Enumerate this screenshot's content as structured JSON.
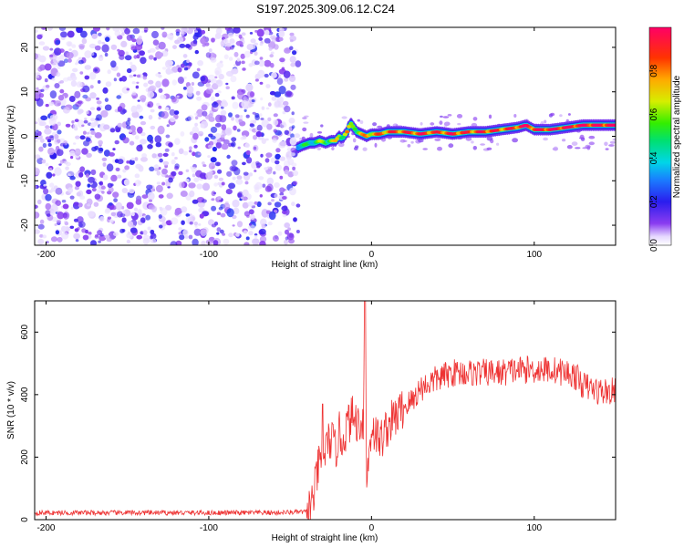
{
  "title": "S197.2025.309.06.12.C24",
  "chart_data": [
    {
      "type": "heatmap",
      "title": "S197.2025.309.06.12.C24",
      "xlabel": "Height of straight line (km)",
      "ylabel": "Frequency (Hz)",
      "xlim": [
        -207,
        150
      ],
      "ylim": [
        -24.5,
        24.5
      ],
      "xticks": [
        -200,
        -100,
        0,
        100
      ],
      "yticks": [
        -20,
        -10,
        0,
        10,
        20
      ],
      "noise_region_x": [
        -207,
        -45
      ],
      "signal_trace": {
        "x": [
          -45,
          -42,
          -38,
          -35,
          -32,
          -28,
          -25,
          -22,
          -20,
          -18,
          -15,
          -13,
          -11,
          -9,
          -6,
          -3,
          0,
          5,
          10,
          20,
          30,
          40,
          50,
          60,
          70,
          80,
          90,
          95,
          100,
          110,
          120,
          130,
          140,
          150
        ],
        "y": [
          -2.5,
          -2,
          -1.5,
          -1.5,
          -1,
          -1.5,
          -1,
          -1,
          0,
          -0.5,
          1,
          3,
          2,
          1,
          0.5,
          0,
          0.5,
          0.5,
          1,
          1,
          0.5,
          1,
          0.5,
          1,
          1,
          1.5,
          2,
          2.5,
          1.5,
          1.5,
          2,
          2.5,
          2.5,
          2.5
        ],
        "amplitude": [
          0.35,
          0.4,
          0.4,
          0.45,
          0.5,
          0.55,
          0.55,
          0.6,
          0.6,
          0.55,
          0.7,
          0.45,
          0.55,
          0.6,
          0.65,
          0.7,
          0.7,
          0.75,
          0.8,
          0.8,
          0.85,
          0.8,
          0.85,
          0.8,
          0.85,
          0.8,
          0.85,
          0.9,
          0.85,
          0.9,
          0.9,
          0.9,
          0.9,
          0.9
        ]
      },
      "colorbar": {
        "label": "Normalized spectral amplitude",
        "ticks": [
          "0.0",
          "0.2",
          "0.4",
          "0.6",
          "0.8"
        ],
        "range": [
          0,
          1
        ]
      }
    },
    {
      "type": "line",
      "xlabel": "Height of straight line (km)",
      "ylabel": "SNR (10 * v/v)",
      "xlim": [
        -207,
        150
      ],
      "ylim": [
        0,
        700
      ],
      "xticks": [
        -200,
        -100,
        0,
        100
      ],
      "yticks": [
        0,
        200,
        400,
        600
      ],
      "series": [
        {
          "name": "SNR",
          "color": "#ee3333",
          "x": [
            -207,
            -150,
            -100,
            -60,
            -40,
            -36,
            -33,
            -30,
            -27,
            -25,
            -22,
            -20,
            -18,
            -15,
            -12,
            -8,
            -5,
            -4,
            -3,
            0,
            5,
            10,
            15,
            20,
            25,
            30,
            40,
            50,
            60,
            70,
            80,
            90,
            100,
            110,
            120,
            125,
            130,
            140,
            150
          ],
          "y": [
            22,
            22,
            22,
            22,
            25,
            60,
            160,
            200,
            240,
            260,
            220,
            280,
            250,
            300,
            330,
            310,
            320,
            700,
            120,
            300,
            250,
            300,
            330,
            360,
            380,
            420,
            450,
            470,
            470,
            470,
            470,
            480,
            480,
            480,
            470,
            460,
            430,
            410,
            410
          ]
        }
      ]
    }
  ]
}
